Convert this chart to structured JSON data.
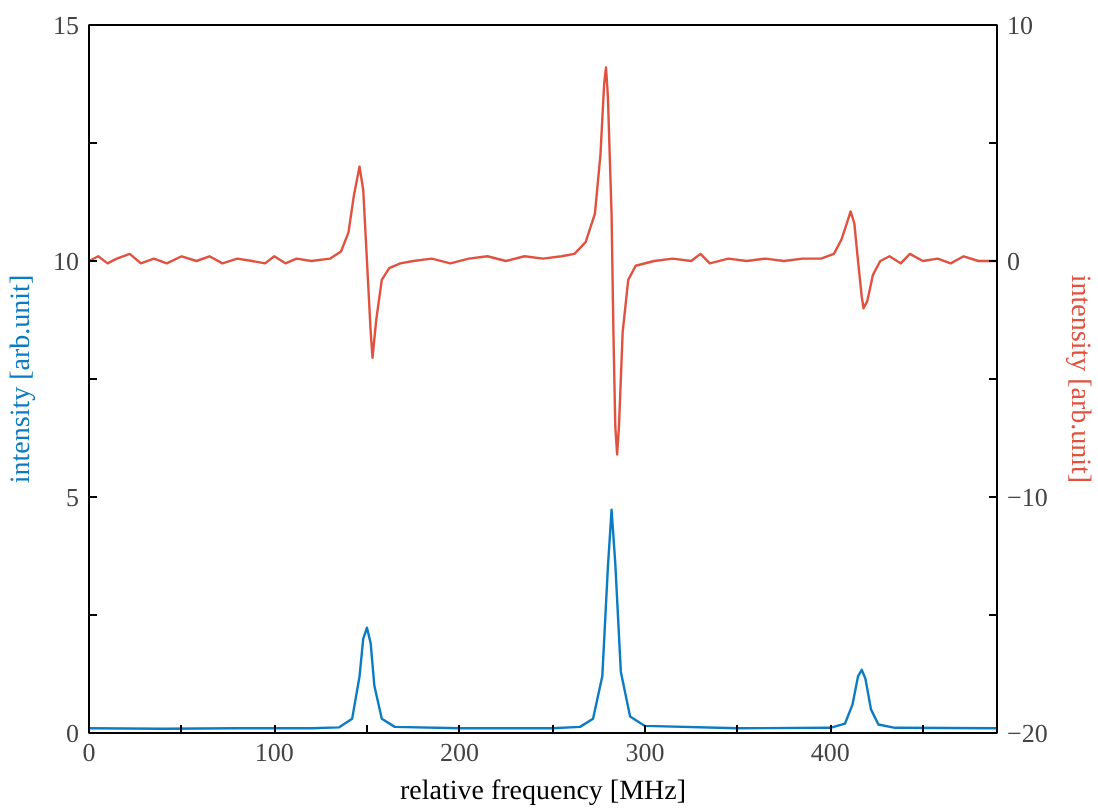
{
  "chart_data": {
    "type": "line",
    "xlabel": "relative frequency [MHz]",
    "ylabel": "intensity [arb.unit]",
    "y2label": "intensity [arb.unit]",
    "xlim": [
      0,
      490
    ],
    "ylim": [
      0,
      15
    ],
    "y2lim": [
      -20,
      10
    ],
    "xticks": [
      0,
      {
        "value": 50,
        "label": null
      },
      100,
      {
        "value": 150,
        "label": null
      },
      200,
      {
        "value": 250,
        "label": null
      },
      300,
      {
        "value": 350,
        "label": null
      },
      400,
      {
        "value": 450,
        "label": null
      }
    ],
    "yticks": [
      0,
      {
        "value": 2.5,
        "label": null
      },
      5,
      {
        "value": 7.5,
        "label": null
      },
      10,
      {
        "value": 12.5,
        "label": null
      },
      15
    ],
    "y2ticks": [
      -20,
      {
        "value": -15,
        "label": null
      },
      -10,
      {
        "value": -5,
        "label": null
      },
      0,
      {
        "value": 5,
        "label": null
      },
      10
    ],
    "grid": false,
    "marker": "none",
    "line_style": "solid",
    "series": [
      {
        "color": "#0b7cc2",
        "x": [
          0,
          40,
          80,
          120,
          135,
          142,
          146,
          148,
          150,
          152,
          154,
          158,
          165,
          200,
          250,
          265,
          272,
          277,
          280,
          282,
          284,
          287,
          292,
          300,
          350,
          400,
          408,
          412,
          415,
          417,
          419,
          422,
          426,
          435,
          490
        ],
        "values": [
          0.1,
          0.09,
          0.1,
          0.1,
          0.12,
          0.3,
          1.2,
          2.0,
          2.23,
          1.9,
          1.0,
          0.3,
          0.13,
          0.1,
          0.1,
          0.13,
          0.3,
          1.2,
          3.5,
          4.73,
          3.6,
          1.3,
          0.35,
          0.15,
          0.1,
          0.11,
          0.2,
          0.6,
          1.2,
          1.34,
          1.15,
          0.5,
          0.18,
          0.11,
          0.1
        ]
      },
      {
        "color": "#e0513f",
        "axis": "y2",
        "x": [
          0,
          5,
          10,
          15,
          22,
          28,
          35,
          42,
          50,
          58,
          65,
          72,
          80,
          88,
          95,
          100,
          106,
          112,
          120,
          130,
          136,
          140,
          143,
          146,
          148,
          150,
          152,
          153,
          155,
          158,
          162,
          168,
          175,
          185,
          195,
          205,
          215,
          225,
          235,
          245,
          255,
          262,
          268,
          273,
          276,
          278,
          279,
          280,
          282,
          283,
          284,
          285,
          286,
          288,
          291,
          295,
          305,
          315,
          325,
          330,
          335,
          345,
          355,
          365,
          375,
          385,
          395,
          402,
          406,
          409,
          411,
          413,
          415,
          417,
          418,
          420,
          423,
          427,
          432,
          438,
          443,
          450,
          458,
          465,
          472,
          480,
          490
        ],
        "values": [
          0,
          0.2,
          -0.1,
          0.1,
          0.3,
          -0.1,
          0.1,
          -0.1,
          0.2,
          0,
          0.2,
          -0.1,
          0.1,
          0,
          -0.1,
          0.2,
          -0.1,
          0.1,
          0,
          0.1,
          0.4,
          1.2,
          2.8,
          4.0,
          3.0,
          0,
          -3.0,
          -4.1,
          -2.5,
          -0.8,
          -0.3,
          -0.1,
          0,
          0.1,
          -0.1,
          0.1,
          0.2,
          0,
          0.2,
          0.1,
          0.2,
          0.3,
          0.8,
          2.0,
          4.5,
          7.5,
          8.2,
          7.0,
          2.0,
          -3.0,
          -7.0,
          -8.2,
          -7.0,
          -3.0,
          -0.8,
          -0.2,
          0,
          0.1,
          0,
          0.3,
          -0.1,
          0.1,
          0,
          0.1,
          0,
          0.1,
          0.1,
          0.3,
          0.9,
          1.6,
          2.1,
          1.6,
          0,
          -1.5,
          -2.0,
          -1.7,
          -0.6,
          0,
          0.2,
          -0.1,
          0.3,
          0,
          0.1,
          -0.1,
          0.2,
          0,
          0
        ]
      }
    ]
  }
}
